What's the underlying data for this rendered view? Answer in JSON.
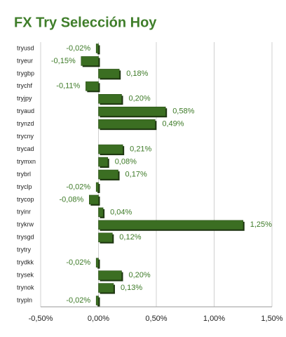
{
  "chart_data": {
    "type": "bar",
    "orientation": "horizontal",
    "title": "FX Try Selección Hoy",
    "categories": [
      "tryusd",
      "tryeur",
      "trygbp",
      "trychf",
      "tryjpy",
      "tryaud",
      "trynzd",
      "trycny",
      "trycad",
      "trymxn",
      "trybrl",
      "tryclp",
      "trycop",
      "tryinr",
      "trykrw",
      "trysgd",
      "trytry",
      "trydkk",
      "trysek",
      "trynok",
      "trypln"
    ],
    "values": [
      -0.02,
      -0.15,
      0.18,
      -0.11,
      0.2,
      0.58,
      0.49,
      null,
      0.21,
      0.08,
      0.17,
      -0.02,
      -0.08,
      0.04,
      1.25,
      0.12,
      null,
      -0.02,
      0.2,
      0.13,
      -0.02
    ],
    "value_labels": [
      "-0,02%",
      "-0,15%",
      "0,18%",
      "-0,11%",
      "0,20%",
      "0,58%",
      "0,49%",
      null,
      "0,21%",
      "0,08%",
      "0,17%",
      "-0,02%",
      "-0,08%",
      "0,04%",
      "1,25%",
      "0,12%",
      null,
      "-0,02%",
      "0,20%",
      "0,13%",
      "-0,02%"
    ],
    "color": "#3b6e22",
    "xlim": [
      -0.5,
      1.5
    ],
    "xticks": [
      {
        "value": -0.5,
        "label": "-0,50%"
      },
      {
        "value": 0,
        "label": "0,00%"
      },
      {
        "value": 0.5,
        "label": "0,50%"
      },
      {
        "value": 1.0,
        "label": "1,00%"
      },
      {
        "value": 1.5,
        "label": "1,50%"
      }
    ],
    "grid": true
  }
}
